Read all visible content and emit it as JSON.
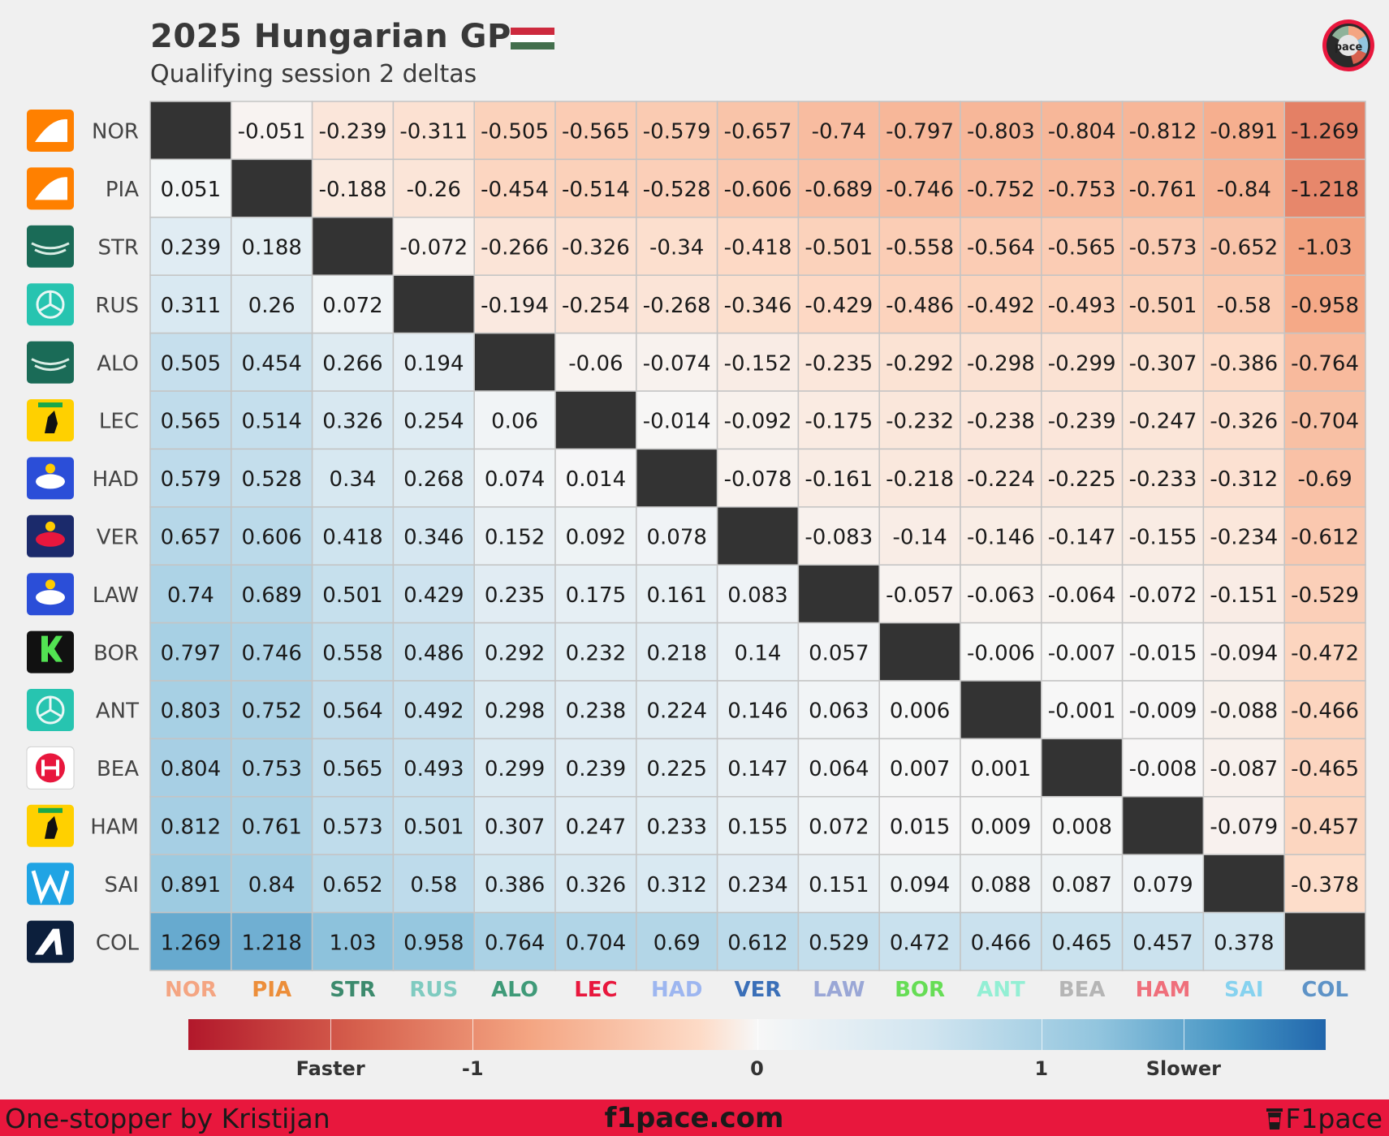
{
  "header": {
    "title": "2025 Hungarian GP",
    "subtitle": "Qualifying session 2 deltas",
    "flag": {
      "icon": "hungary-flag-icon",
      "colors": [
        "#cd2a3e",
        "#ffffff",
        "#436f4d"
      ]
    },
    "brand_logo": {
      "icon": "f1pace-logo-icon",
      "text": "pace"
    }
  },
  "chart_data": {
    "type": "heatmap",
    "title": "2025 Hungarian GP",
    "subtitle": "Qualifying session 2 deltas",
    "drivers": [
      "NOR",
      "PIA",
      "STR",
      "RUS",
      "ALO",
      "LEC",
      "HAD",
      "VER",
      "LAW",
      "BOR",
      "ANT",
      "BEA",
      "HAM",
      "SAI",
      "COL"
    ],
    "teams": [
      "mclaren",
      "mclaren",
      "aston-martin",
      "mercedes",
      "aston-martin",
      "ferrari",
      "racing-bulls",
      "red-bull",
      "racing-bulls",
      "sauber",
      "mercedes",
      "haas",
      "ferrari",
      "williams",
      "alpine"
    ],
    "column_label_colors": [
      "#f4a582",
      "#ec8e3a",
      "#3c8a6d",
      "#7fcbc0",
      "#3f9a78",
      "#e8173d",
      "#9db6f0",
      "#3a6fb8",
      "#9aa7d6",
      "#66dd55",
      "#93efd4",
      "#b5b5b5",
      "#ef6f7b",
      "#86d2ef",
      "#5e93c7"
    ],
    "diagonal_color": "#333333",
    "values": [
      [
        null,
        -0.051,
        -0.239,
        -0.311,
        -0.505,
        -0.565,
        -0.579,
        -0.657,
        -0.74,
        -0.797,
        -0.803,
        -0.804,
        -0.812,
        -0.891,
        -1.269
      ],
      [
        0.051,
        null,
        -0.188,
        -0.26,
        -0.454,
        -0.514,
        -0.528,
        -0.606,
        -0.689,
        -0.746,
        -0.752,
        -0.753,
        -0.761,
        -0.84,
        -1.218
      ],
      [
        0.239,
        0.188,
        null,
        -0.072,
        -0.266,
        -0.326,
        -0.34,
        -0.418,
        -0.501,
        -0.558,
        -0.564,
        -0.565,
        -0.573,
        -0.652,
        -1.03
      ],
      [
        0.311,
        0.26,
        0.072,
        null,
        -0.194,
        -0.254,
        -0.268,
        -0.346,
        -0.429,
        -0.486,
        -0.492,
        -0.493,
        -0.501,
        -0.58,
        -0.958
      ],
      [
        0.505,
        0.454,
        0.266,
        0.194,
        null,
        -0.06,
        -0.074,
        -0.152,
        -0.235,
        -0.292,
        -0.298,
        -0.299,
        -0.307,
        -0.386,
        -0.764
      ],
      [
        0.565,
        0.514,
        0.326,
        0.254,
        0.06,
        null,
        -0.014,
        -0.092,
        -0.175,
        -0.232,
        -0.238,
        -0.239,
        -0.247,
        -0.326,
        -0.704
      ],
      [
        0.579,
        0.528,
        0.34,
        0.268,
        0.074,
        0.014,
        null,
        -0.078,
        -0.161,
        -0.218,
        -0.224,
        -0.225,
        -0.233,
        -0.312,
        -0.69
      ],
      [
        0.657,
        0.606,
        0.418,
        0.346,
        0.152,
        0.092,
        0.078,
        null,
        -0.083,
        -0.14,
        -0.146,
        -0.147,
        -0.155,
        -0.234,
        -0.612
      ],
      [
        0.74,
        0.689,
        0.501,
        0.429,
        0.235,
        0.175,
        0.161,
        0.083,
        null,
        -0.057,
        -0.063,
        -0.064,
        -0.072,
        -0.151,
        -0.529
      ],
      [
        0.797,
        0.746,
        0.558,
        0.486,
        0.292,
        0.232,
        0.218,
        0.14,
        0.057,
        null,
        -0.006,
        -0.007,
        -0.015,
        -0.094,
        -0.472
      ],
      [
        0.803,
        0.752,
        0.564,
        0.492,
        0.298,
        0.238,
        0.224,
        0.146,
        0.063,
        0.006,
        null,
        -0.001,
        -0.009,
        -0.088,
        -0.466
      ],
      [
        0.804,
        0.753,
        0.565,
        0.493,
        0.299,
        0.239,
        0.225,
        0.147,
        0.064,
        0.007,
        0.001,
        null,
        -0.008,
        -0.087,
        -0.465
      ],
      [
        0.812,
        0.761,
        0.573,
        0.501,
        0.307,
        0.247,
        0.233,
        0.155,
        0.072,
        0.015,
        0.009,
        0.008,
        null,
        -0.079,
        -0.457
      ],
      [
        0.891,
        0.84,
        0.652,
        0.58,
        0.386,
        0.326,
        0.312,
        0.234,
        0.151,
        0.094,
        0.088,
        0.087,
        0.079,
        null,
        -0.378
      ],
      [
        1.269,
        1.218,
        1.03,
        0.958,
        0.764,
        0.704,
        0.69,
        0.612,
        0.529,
        0.472,
        0.466,
        0.465,
        0.457,
        0.378,
        null
      ]
    ],
    "colorbar": {
      "colormap": "RdBu",
      "range": [
        -2,
        2
      ],
      "ticks": [
        -1.5,
        -1,
        0,
        1,
        1.5
      ],
      "tick_labels": [
        "Faster",
        "-1",
        "0",
        "1",
        "Slower"
      ],
      "colors": [
        "#b2182b",
        "#f7f7f7",
        "#2166ac"
      ]
    }
  },
  "footer": {
    "left": "One-stopper by Kristijan",
    "center": "f1pace.com",
    "right": "F1pace",
    "background": "#e8173d"
  }
}
